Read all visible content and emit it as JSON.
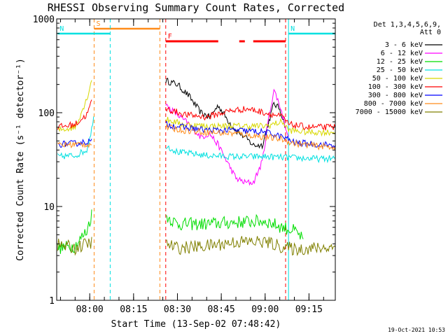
{
  "chart_data": {
    "type": "line",
    "title": "RHESSI Observing Summary Count Rates, Corrected",
    "xlabel": "Start Time (13-Sep-02 07:48:42)",
    "ylabel": "Corrected Count Rate (s⁻¹ detector⁻¹)",
    "y_scale": "log",
    "ylim": [
      1,
      1000
    ],
    "xlim": [
      "07:48:42",
      "09:24:00"
    ],
    "x_ticks": [
      "08:00",
      "08:15",
      "08:30",
      "08:45",
      "09:00",
      "09:15"
    ],
    "y_ticks": [
      "1",
      "10",
      "100",
      "1000"
    ],
    "legend_title": [
      "Det 1,3,4,5,6,9,",
      "Att 0"
    ],
    "legend_position": "right",
    "timestamp": "19-Oct-2021 10:53",
    "annotations": [
      {
        "label": "S",
        "color": "#ff8c1a",
        "start": "08:01:30",
        "end": "08:24:00"
      },
      {
        "label": "N",
        "color": "#00e0e0",
        "start": "07:49:00",
        "end": "08:07:00"
      },
      {
        "label": "N",
        "color": "#00e0e0",
        "start": "09:08:00",
        "end": "09:24:00"
      },
      {
        "label": "F",
        "color": "#ff0000",
        "start": "08:26:00",
        "end": "09:07:00"
      }
    ],
    "series": [
      {
        "name": "3 - 6 keV",
        "color": "#000000",
        "points": [
          [
            "08:26",
            220
          ],
          [
            "08:30",
            200
          ],
          [
            "08:34",
            150
          ],
          [
            "08:38",
            100
          ],
          [
            "08:41",
            90
          ],
          [
            "08:44",
            120
          ],
          [
            "08:47",
            85
          ],
          [
            "08:50",
            65
          ],
          [
            "08:53",
            55
          ],
          [
            "08:56",
            45
          ],
          [
            "08:59",
            45
          ],
          [
            "09:01",
            75
          ],
          [
            "09:03",
            125
          ],
          [
            "09:05",
            110
          ],
          [
            "09:07",
            70
          ]
        ]
      },
      {
        "name": "6 - 12 keV",
        "color": "#ff00ff",
        "points": [
          [
            "08:26",
            120
          ],
          [
            "08:30",
            95
          ],
          [
            "08:34",
            75
          ],
          [
            "08:38",
            55
          ],
          [
            "08:41",
            60
          ],
          [
            "08:44",
            45
          ],
          [
            "08:47",
            30
          ],
          [
            "08:50",
            20
          ],
          [
            "08:53",
            18
          ],
          [
            "08:56",
            18
          ],
          [
            "08:59",
            30
          ],
          [
            "09:01",
            80
          ],
          [
            "09:03",
            175
          ],
          [
            "09:05",
            120
          ],
          [
            "09:08",
            55
          ]
        ]
      },
      {
        "name": "12 - 25 keV",
        "color": "#00dd00",
        "points": [
          [
            "07:49",
            3.6
          ],
          [
            "07:55",
            3.8
          ],
          [
            "07:59",
            5.5
          ],
          [
            "08:01",
            9
          ],
          [
            "08:26",
            8
          ],
          [
            "08:30",
            6.5
          ],
          [
            "08:40",
            6.5
          ],
          [
            "08:50",
            6.8
          ],
          [
            "09:00",
            7
          ],
          [
            "09:06",
            6
          ],
          [
            "09:10",
            5.5
          ],
          [
            "09:13",
            4.5
          ]
        ]
      },
      {
        "name": "25 - 50 keV",
        "color": "#00e0e0",
        "points": [
          [
            "07:49",
            34
          ],
          [
            "07:55",
            35
          ],
          [
            "07:59",
            40
          ],
          [
            "08:01",
            75
          ],
          [
            "08:01:40",
            100
          ],
          [
            "08:26",
            45
          ],
          [
            "08:30",
            38
          ],
          [
            "08:40",
            35
          ],
          [
            "08:50",
            34
          ],
          [
            "09:00",
            34
          ],
          [
            "09:10",
            33
          ],
          [
            "09:20",
            32
          ],
          [
            "09:24",
            33
          ]
        ]
      },
      {
        "name": "50 - 100 keV",
        "color": "#d8d800",
        "points": [
          [
            "07:49",
            65
          ],
          [
            "07:55",
            70
          ],
          [
            "07:59",
            140
          ],
          [
            "08:01",
            250
          ],
          [
            "08:26",
            85
          ],
          [
            "08:32",
            75
          ],
          [
            "08:40",
            72
          ],
          [
            "08:50",
            72
          ],
          [
            "09:00",
            72
          ],
          [
            "09:06",
            80
          ],
          [
            "09:08",
            65
          ],
          [
            "09:15",
            62
          ],
          [
            "09:24",
            62
          ]
        ]
      },
      {
        "name": "100 - 300 keV",
        "color": "#ff0000",
        "points": [
          [
            "07:49",
            70
          ],
          [
            "07:55",
            75
          ],
          [
            "07:59",
            95
          ],
          [
            "08:01",
            140
          ],
          [
            "08:26",
            110
          ],
          [
            "08:33",
            95
          ],
          [
            "08:40",
            90
          ],
          [
            "08:48",
            105
          ],
          [
            "08:54",
            110
          ],
          [
            "09:00",
            100
          ],
          [
            "09:06",
            90
          ],
          [
            "09:08",
            75
          ],
          [
            "09:15",
            70
          ],
          [
            "09:24",
            70
          ]
        ]
      },
      {
        "name": "300 - 800 keV",
        "color": "#0000ff",
        "points": [
          [
            "07:49",
            46
          ],
          [
            "07:55",
            47
          ],
          [
            "08:01",
            50
          ],
          [
            "08:26",
            75
          ],
          [
            "08:32",
            70
          ],
          [
            "08:40",
            65
          ],
          [
            "08:50",
            65
          ],
          [
            "09:00",
            62
          ],
          [
            "09:06",
            55
          ],
          [
            "09:10",
            48
          ],
          [
            "09:18",
            46
          ],
          [
            "09:24",
            45
          ]
        ]
      },
      {
        "name": "800 - 7000 keV",
        "color": "#ff8c1a",
        "points": [
          [
            "07:49",
            45
          ],
          [
            "07:55",
            46
          ],
          [
            "08:01",
            46
          ],
          [
            "08:26",
            70
          ],
          [
            "08:32",
            65
          ],
          [
            "08:40",
            62
          ],
          [
            "08:50",
            60
          ],
          [
            "09:00",
            55
          ],
          [
            "09:06",
            52
          ],
          [
            "09:10",
            47
          ],
          [
            "09:18",
            44
          ],
          [
            "09:24",
            43
          ]
        ]
      },
      {
        "name": "7000 - 15000 keV",
        "color": "#808000",
        "points": [
          [
            "07:49",
            3.9
          ],
          [
            "07:55",
            3.6
          ],
          [
            "08:01",
            4.2
          ],
          [
            "08:26",
            4
          ],
          [
            "08:30",
            3.6
          ],
          [
            "08:40",
            3.8
          ],
          [
            "08:50",
            4.2
          ],
          [
            "09:00",
            4.2
          ],
          [
            "09:06",
            3.7
          ],
          [
            "09:10",
            3.5
          ],
          [
            "09:18",
            3.6
          ],
          [
            "09:24",
            3.7
          ]
        ]
      }
    ]
  }
}
